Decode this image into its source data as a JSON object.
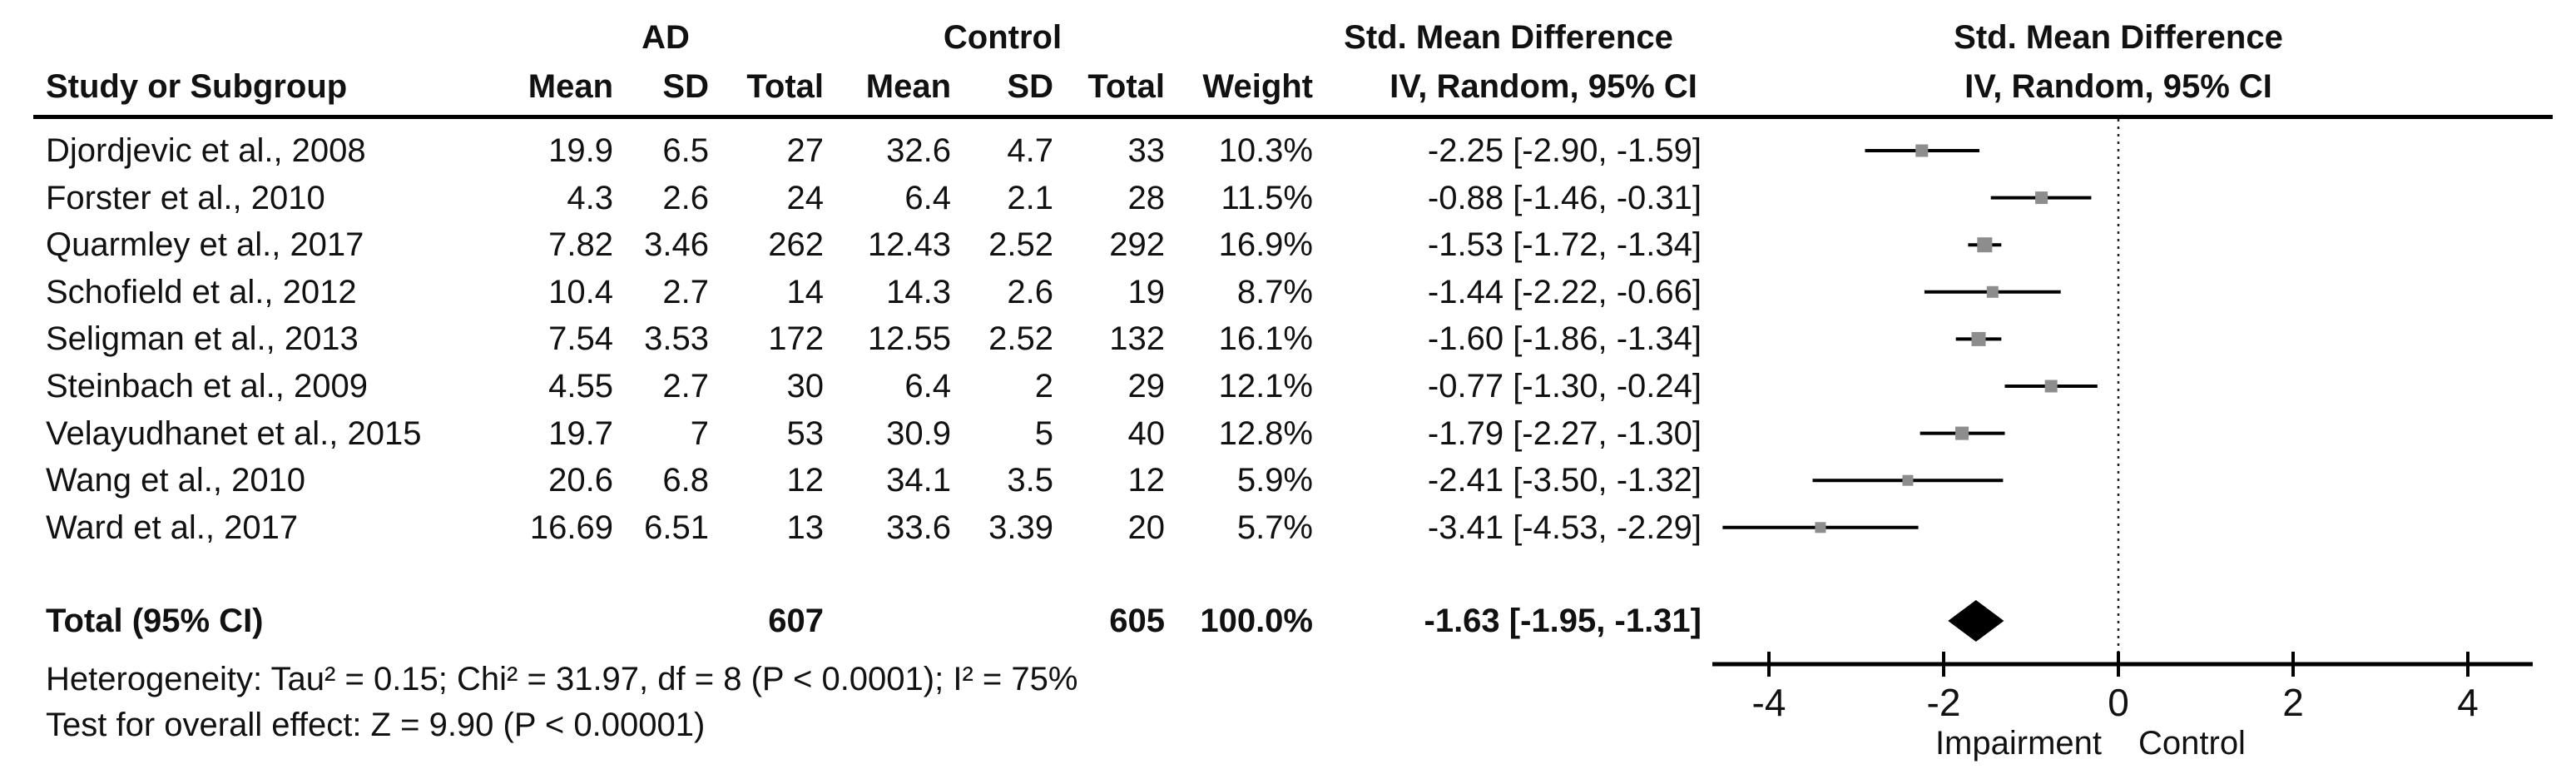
{
  "header": {
    "study_col": "Study or Subgroup",
    "group1": "AD",
    "group2": "Control",
    "mean1": "Mean",
    "sd1": "SD",
    "total1": "Total",
    "mean2": "Mean",
    "sd2": "SD",
    "total2": "Total",
    "weight": "Weight",
    "smd_title": "Std. Mean Difference",
    "smd_subtitle": "IV, Random, 95% CI",
    "plot_title": "Std. Mean Difference",
    "plot_subtitle": "IV, Random, 95% CI"
  },
  "chart_data": {
    "type": "forest",
    "effect_measure": "Std. Mean Difference",
    "model": "IV, Random, 95% CI",
    "x_axis": {
      "ticks": [
        -4,
        -2,
        0,
        2,
        4
      ],
      "range": [
        -4.65,
        4.75
      ],
      "left_label": "Impairment",
      "right_label": "Control",
      "zero_reference_line": true
    },
    "studies": [
      {
        "name": "Djordjevic et al., 2008",
        "ad_mean": "19.9",
        "ad_sd": "6.5",
        "ad_total": "27",
        "c_mean": "32.6",
        "c_sd": "4.7",
        "c_total": "33",
        "weight": "10.3%",
        "weight_value": 10.3,
        "ci_text": "-2.25 [-2.90, -1.59]",
        "smd": -2.25,
        "ci_low": -2.9,
        "ci_high": -1.59
      },
      {
        "name": "Forster et al., 2010",
        "ad_mean": "4.3",
        "ad_sd": "2.6",
        "ad_total": "24",
        "c_mean": "6.4",
        "c_sd": "2.1",
        "c_total": "28",
        "weight": "11.5%",
        "weight_value": 11.5,
        "ci_text": "-0.88 [-1.46, -0.31]",
        "smd": -0.88,
        "ci_low": -1.46,
        "ci_high": -0.31
      },
      {
        "name": "Quarmley et al., 2017",
        "ad_mean": "7.82",
        "ad_sd": "3.46",
        "ad_total": "262",
        "c_mean": "12.43",
        "c_sd": "2.52",
        "c_total": "292",
        "weight": "16.9%",
        "weight_value": 16.9,
        "ci_text": "-1.53 [-1.72, -1.34]",
        "smd": -1.53,
        "ci_low": -1.72,
        "ci_high": -1.34
      },
      {
        "name": "Schofield et al., 2012",
        "ad_mean": "10.4",
        "ad_sd": "2.7",
        "ad_total": "14",
        "c_mean": "14.3",
        "c_sd": "2.6",
        "c_total": "19",
        "weight": "8.7%",
        "weight_value": 8.7,
        "ci_text": "-1.44 [-2.22, -0.66]",
        "smd": -1.44,
        "ci_low": -2.22,
        "ci_high": -0.66
      },
      {
        "name": "Seligman et al., 2013",
        "ad_mean": "7.54",
        "ad_sd": "3.53",
        "ad_total": "172",
        "c_mean": "12.55",
        "c_sd": "2.52",
        "c_total": "132",
        "weight": "16.1%",
        "weight_value": 16.1,
        "ci_text": "-1.60 [-1.86, -1.34]",
        "smd": -1.6,
        "ci_low": -1.86,
        "ci_high": -1.34
      },
      {
        "name": "Steinbach et al., 2009",
        "ad_mean": "4.55",
        "ad_sd": "2.7",
        "ad_total": "30",
        "c_mean": "6.4",
        "c_sd": "2",
        "c_total": "29",
        "weight": "12.1%",
        "weight_value": 12.1,
        "ci_text": "-0.77 [-1.30, -0.24]",
        "smd": -0.77,
        "ci_low": -1.3,
        "ci_high": -0.24
      },
      {
        "name": "Velayudhanet et al., 2015",
        "ad_mean": "19.7",
        "ad_sd": "7",
        "ad_total": "53",
        "c_mean": "30.9",
        "c_sd": "5",
        "c_total": "40",
        "weight": "12.8%",
        "weight_value": 12.8,
        "ci_text": "-1.79 [-2.27, -1.30]",
        "smd": -1.79,
        "ci_low": -2.27,
        "ci_high": -1.3
      },
      {
        "name": "Wang et al., 2010",
        "ad_mean": "20.6",
        "ad_sd": "6.8",
        "ad_total": "12",
        "c_mean": "34.1",
        "c_sd": "3.5",
        "c_total": "12",
        "weight": "5.9%",
        "weight_value": 5.9,
        "ci_text": "-2.41 [-3.50, -1.32]",
        "smd": -2.41,
        "ci_low": -3.5,
        "ci_high": -1.32
      },
      {
        "name": "Ward et al., 2017",
        "ad_mean": "16.69",
        "ad_sd": "6.51",
        "ad_total": "13",
        "c_mean": "33.6",
        "c_sd": "3.39",
        "c_total": "20",
        "weight": "5.7%",
        "weight_value": 5.7,
        "ci_text": "-3.41 [-4.53, -2.29]",
        "smd": -3.41,
        "ci_low": -4.53,
        "ci_high": -2.29
      }
    ],
    "total": {
      "label": "Total (95% CI)",
      "ad_total": "607",
      "c_total": "605",
      "weight": "100.0%",
      "ci_text": "-1.63 [-1.95, -1.31]",
      "smd": -1.63,
      "ci_low": -1.95,
      "ci_high": -1.31
    }
  },
  "footer": {
    "heterogeneity": "Heterogeneity: Tau² = 0.15; Chi² = 31.97, df = 8 (P < 0.0001); I² = 75%",
    "overall_effect": "Test for overall effect: Z = 9.90 (P < 0.00001)"
  },
  "colors": {
    "text": "#111111",
    "line": "#000000",
    "marker": "#8d8d8d",
    "diamond": "#000000"
  }
}
